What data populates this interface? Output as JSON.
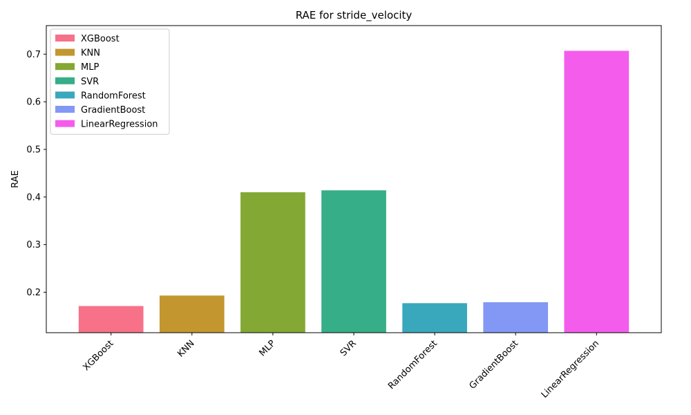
{
  "chart_data": {
    "type": "bar",
    "title": "RAE for stride_velocity",
    "xlabel": "",
    "ylabel": "RAE",
    "ylim": [
      0.115,
      0.76
    ],
    "yticks": [
      0.2,
      0.3,
      0.4,
      0.5,
      0.6,
      0.7
    ],
    "categories": [
      "XGBoost",
      "KNN",
      "MLP",
      "SVR",
      "RandomForest",
      "GradientBoost",
      "LinearRegression"
    ],
    "values": [
      0.171,
      0.193,
      0.41,
      0.414,
      0.177,
      0.179,
      0.707
    ],
    "colors": [
      "#f77189",
      "#c4962f",
      "#83a833",
      "#36ae88",
      "#3aa8bc",
      "#8298f4",
      "#f45deb"
    ],
    "legend": {
      "location": "top-left",
      "entries": [
        "XGBoost",
        "KNN",
        "MLP",
        "SVR",
        "RandomForest",
        "GradientBoost",
        "LinearRegression"
      ]
    },
    "grid": false
  }
}
